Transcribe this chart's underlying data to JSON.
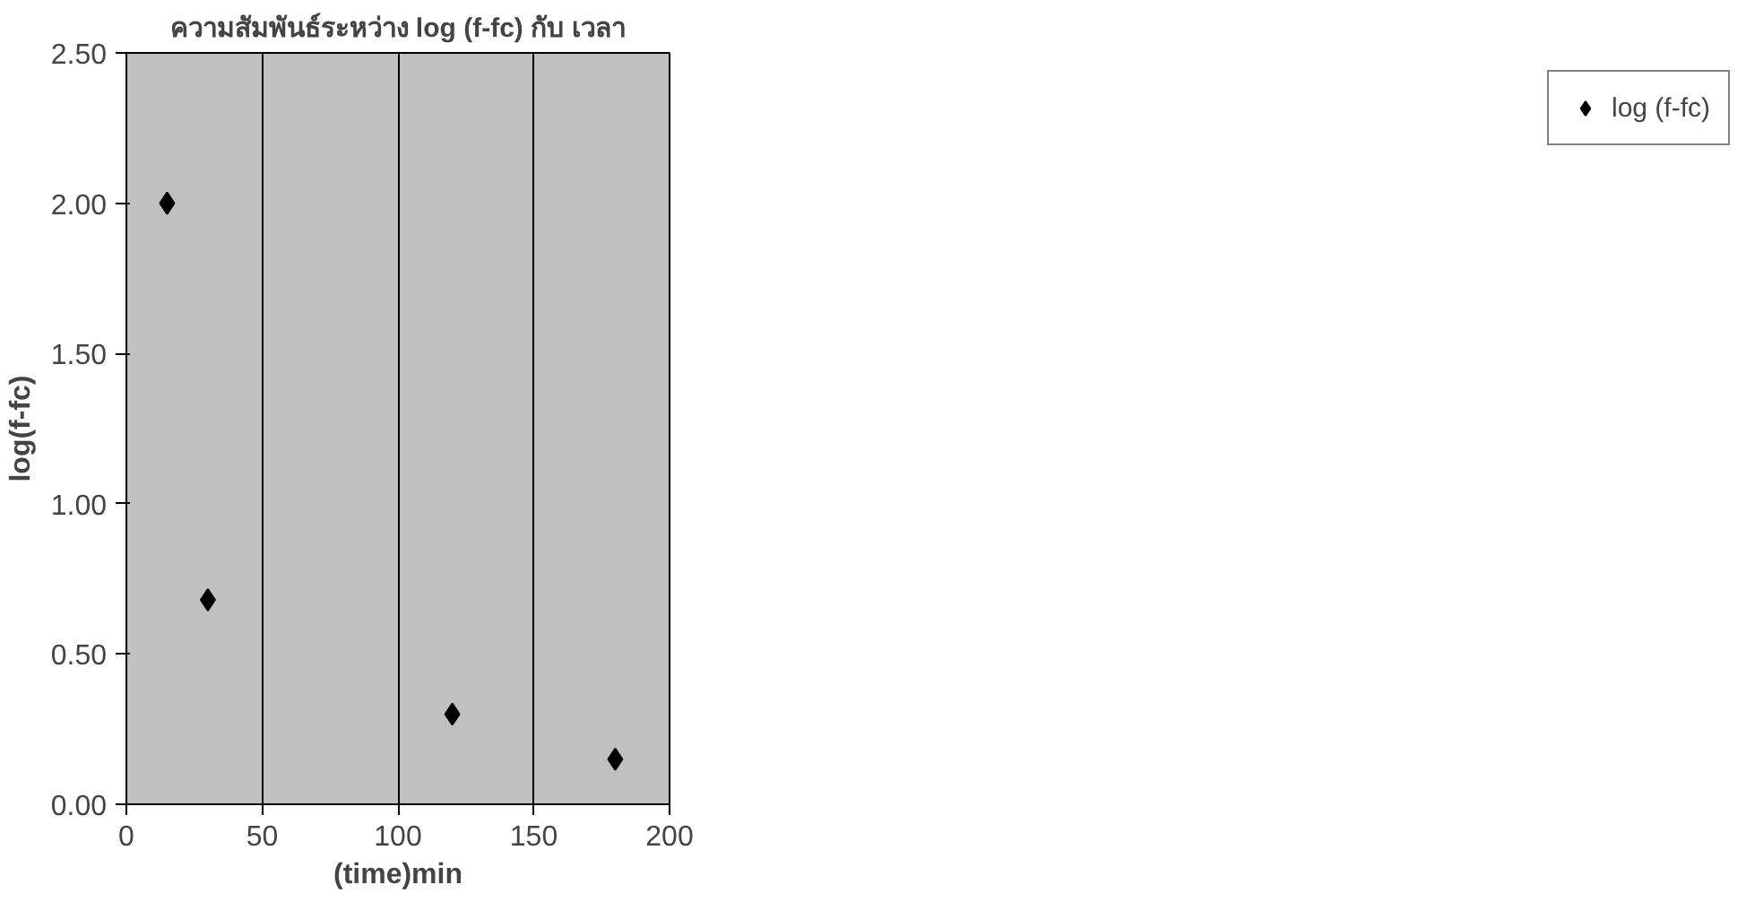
{
  "chart_data": {
    "type": "scatter",
    "title": "ความสัมพันธ์ระหว่าง log (f-fc) กับ เวลา",
    "xlabel": "(time)min",
    "ylabel": "log(f-fc)",
    "series": [
      {
        "name": "log (f-fc)",
        "color": "#000000",
        "x": [
          15,
          30,
          120,
          180
        ],
        "values": [
          2.0,
          0.68,
          0.3,
          0.15
        ]
      }
    ],
    "xlim": [
      0,
      200
    ],
    "xticks": [
      0,
      50,
      100,
      150,
      200
    ],
    "ylim": [
      0,
      2.5
    ],
    "yticks": [
      {
        "value": 0,
        "label": "0.00"
      },
      {
        "value": 0.5,
        "label": "0.50"
      },
      {
        "value": 1,
        "label": "1.00"
      },
      {
        "value": 1.5,
        "label": "1.50"
      },
      {
        "value": 2,
        "label": "2.00"
      },
      {
        "value": 2.5,
        "label": "2.50"
      }
    ],
    "grid": "x",
    "legend": "right",
    "marker": "diamond"
  }
}
